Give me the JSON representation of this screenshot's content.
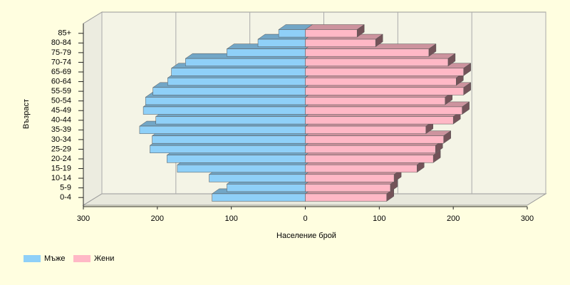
{
  "chart_data": {
    "type": "pyramid",
    "x_label": "Население брой",
    "y_label": "Възраст",
    "categories": [
      "0-4",
      "5-9",
      "10-14",
      "15-19",
      "20-24",
      "25-29",
      "30-34",
      "35-39",
      "40-44",
      "45-49",
      "50-54",
      "55-59",
      "60-64",
      "65-69",
      "70-74",
      "75-79",
      "80-84",
      "85+"
    ],
    "series": [
      {
        "name": "Мъже",
        "color": "#8fd0f8",
        "values": [
          -126,
          -106,
          -130,
          -173,
          -187,
          -210,
          -207,
          -224,
          -202,
          -219,
          -216,
          -206,
          -186,
          -181,
          -162,
          -106,
          -64,
          -36
        ]
      },
      {
        "name": "Жени",
        "color": "#ffb8c6",
        "values": [
          110,
          115,
          120,
          151,
          173,
          176,
          187,
          163,
          200,
          212,
          189,
          214,
          204,
          214,
          193,
          167,
          95,
          70
        ]
      }
    ],
    "xlim": [
      -300,
      300
    ],
    "xticks": [
      {
        "value": -300,
        "label": "300"
      },
      {
        "value": -200,
        "label": "200"
      },
      {
        "value": -100,
        "label": "100"
      },
      0,
      100,
      200,
      300
    ],
    "grid": true
  }
}
